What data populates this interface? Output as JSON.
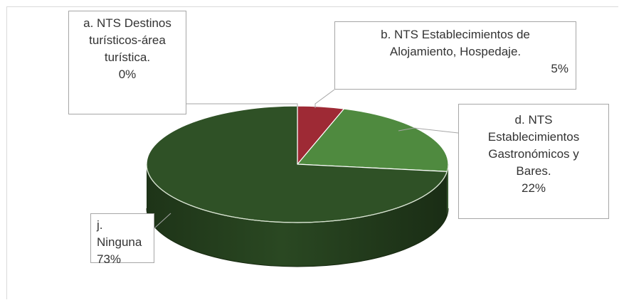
{
  "chart_data": {
    "type": "pie",
    "style": "3d",
    "slices": [
      {
        "key": "a",
        "label": "a. NTS Destinos turísticos-área turística.",
        "lines": [
          "a. NTS Destinos",
          "turísticos-área",
          "turística."
        ],
        "value": 0,
        "pct_label": "0%",
        "color": "#4472c4"
      },
      {
        "key": "b",
        "label": "b. NTS Establecimientos de Alojamiento, Hospedaje.",
        "lines": [
          "b.  NTS Establecimientos de",
          "Alojamiento, Hospedaje."
        ],
        "value": 5,
        "pct_label": "5%",
        "color": "#9e2a35"
      },
      {
        "key": "d",
        "label": "d. NTS Establecimientos Gastronómicos y Bares.",
        "lines": [
          "d. NTS",
          "Establecimientos",
          "Gastronómicos y",
          "Bares."
        ],
        "value": 22,
        "pct_label": "22%",
        "color": "#4f8a3f"
      },
      {
        "key": "j",
        "label": "j. Ninguna",
        "lines": [
          "j.  Ninguna"
        ],
        "value": 73,
        "pct_label": "73%",
        "color": "#2f5126"
      }
    ],
    "legend": "none",
    "title": ""
  }
}
